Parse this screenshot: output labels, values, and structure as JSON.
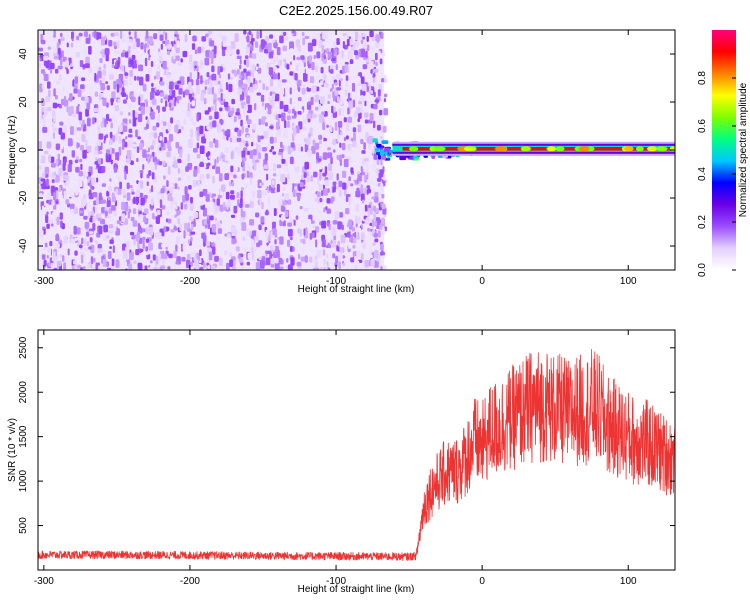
{
  "title": "C2E2.2025.156.00.49.R07",
  "chart_data": [
    {
      "type": "heatmap",
      "xlabel": "Height of straight line (km)",
      "ylabel": "Frequency (Hz)",
      "xlim": [
        -304,
        132
      ],
      "ylim": [
        -50,
        50
      ],
      "xticks": [
        -300,
        -200,
        -100,
        0,
        100
      ],
      "yticks": [
        -40,
        -20,
        0,
        20,
        40
      ],
      "colorbar": {
        "label": "Normalized spectral amplitude",
        "range": [
          0,
          1
        ],
        "ticks": [
          0.0,
          0.2,
          0.4,
          0.6,
          0.8
        ],
        "colors": [
          "#ffffff",
          "#e4cfff",
          "#9a4dff",
          "#6b00e6",
          "#0000ff",
          "#00c8ff",
          "#00ff80",
          "#7fff00",
          "#ffff00",
          "#ff8000",
          "#ff0000",
          "#ff007f"
        ]
      },
      "noise_region": {
        "x": [
          -304,
          -67
        ],
        "freq": [
          -50,
          50
        ],
        "amplitude": [
          0.05,
          0.2
        ]
      },
      "signal_line": {
        "x": [
          -75,
          132
        ],
        "freq": 0.5,
        "amplitude": [
          0.7,
          1.0
        ]
      }
    },
    {
      "type": "line",
      "xlabel": "Height of straight line (km)",
      "ylabel": "SNR (10 * v/v)",
      "xlim": [
        -304,
        132
      ],
      "ylim": [
        0,
        2700
      ],
      "xticks": [
        -300,
        -200,
        -100,
        0,
        100
      ],
      "yticks": [
        500,
        1000,
        1500,
        2000,
        2500
      ],
      "color": "#ee3333",
      "x": [
        -304,
        -250,
        -200,
        -150,
        -100,
        -50,
        -45,
        -40,
        -35,
        -30,
        -25,
        -20,
        -15,
        -10,
        -5,
        0,
        5,
        10,
        15,
        20,
        25,
        30,
        35,
        40,
        45,
        50,
        55,
        60,
        65,
        70,
        75,
        80,
        85,
        90,
        95,
        100,
        105,
        110,
        115,
        120,
        125,
        132
      ],
      "y": [
        170,
        170,
        165,
        160,
        155,
        150,
        160,
        700,
        900,
        1000,
        1100,
        1100,
        1150,
        1300,
        1450,
        1400,
        1550,
        1600,
        1650,
        1700,
        1750,
        1800,
        1850,
        1850,
        1850,
        1800,
        1800,
        1750,
        1800,
        1800,
        1850,
        1800,
        1650,
        1600,
        1550,
        1500,
        1450,
        1450,
        1400,
        1350,
        1300,
        1250
      ]
    }
  ]
}
